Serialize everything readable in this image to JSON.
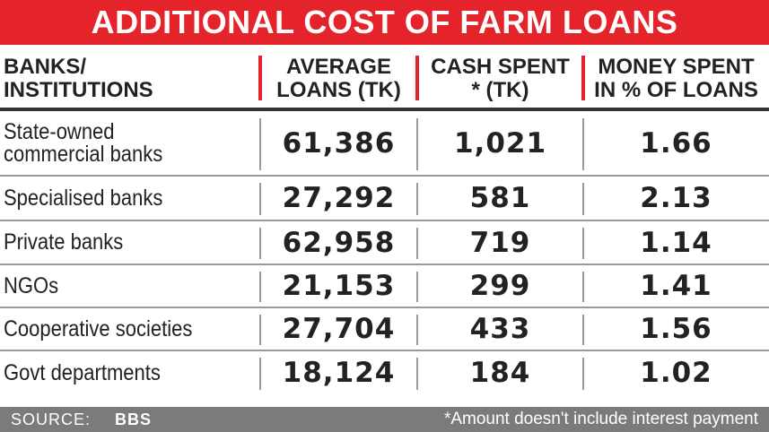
{
  "title": "ADDITIONAL COST OF FARM LOANS",
  "table": {
    "headers": [
      [
        "BANKS/",
        "INSTITUTIONS"
      ],
      [
        "AVERAGE",
        "LOANS (TK)"
      ],
      [
        "CASH SPENT",
        "* (TK)"
      ],
      [
        "MONEY SPENT",
        "IN % OF LOANS"
      ]
    ],
    "rows": [
      [
        [
          "State-owned",
          "commercial banks"
        ],
        "61,386",
        "1,021",
        "1.66"
      ],
      [
        [
          "Specialised banks"
        ],
        "27,292",
        "581",
        "2.13"
      ],
      [
        [
          "Private banks"
        ],
        "62,958",
        "719",
        "1.14"
      ],
      [
        [
          "NGOs"
        ],
        "21,153",
        "299",
        "1.41"
      ],
      [
        [
          "Cooperative societies"
        ],
        "27,704",
        "433",
        "1.56"
      ],
      [
        [
          "Govt departments"
        ],
        "18,124",
        "184",
        "1.02"
      ]
    ]
  },
  "footer": {
    "source_label": "SOURCE:",
    "source": "BBS",
    "note": "*Amount doesn't include interest payment"
  }
}
